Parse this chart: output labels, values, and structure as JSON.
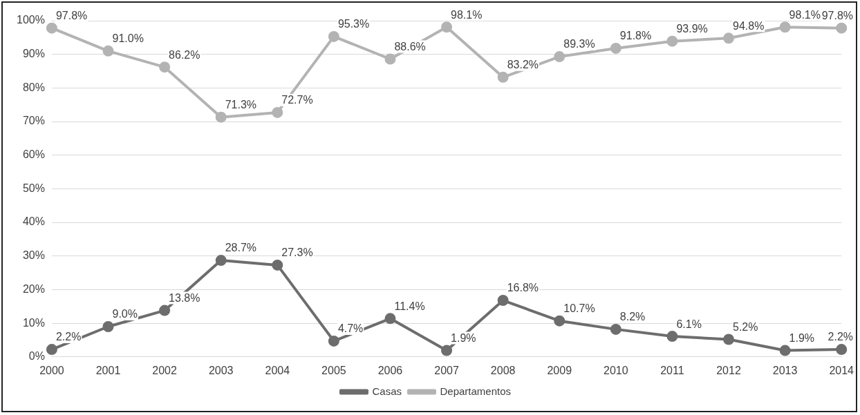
{
  "chart_data": {
    "type": "line",
    "categories": [
      "2000",
      "2001",
      "2002",
      "2003",
      "2004",
      "2005",
      "2006",
      "2007",
      "2008",
      "2009",
      "2010",
      "2011",
      "2012",
      "2013",
      "2014"
    ],
    "series": [
      {
        "name": "Casas",
        "color": "#6d6d6d",
        "values": [
          2.2,
          9.0,
          13.8,
          28.7,
          27.3,
          4.7,
          11.4,
          1.9,
          16.8,
          10.7,
          8.2,
          6.1,
          5.2,
          1.9,
          2.2
        ],
        "value_labels": [
          "2.2%",
          "9.0%",
          "13.8%",
          "28.7%",
          "27.3%",
          "4.7%",
          "11.4%",
          "1.9%",
          "16.8%",
          "10.7%",
          "8.2%",
          "6.1%",
          "5.2%",
          "1.9%",
          "2.2%"
        ]
      },
      {
        "name": "Departamentos",
        "color": "#b3b3b3",
        "values": [
          97.8,
          91.0,
          86.2,
          71.3,
          72.7,
          95.3,
          88.6,
          98.1,
          83.2,
          89.3,
          91.8,
          93.9,
          94.8,
          98.1,
          97.8
        ],
        "value_labels": [
          "97.8%",
          "91.0%",
          "86.2%",
          "71.3%",
          "72.7%",
          "95.3%",
          "88.6%",
          "98.1%",
          "83.2%",
          "89.3%",
          "91.8%",
          "93.9%",
          "94.8%",
          "98.1%",
          "97.8%"
        ]
      }
    ],
    "ylim": [
      0,
      100
    ],
    "yticks": [
      {
        "value": 0,
        "label": "0%"
      },
      {
        "value": 10,
        "label": "10%"
      },
      {
        "value": 20,
        "label": "20%"
      },
      {
        "value": 30,
        "label": "30%"
      },
      {
        "value": 40,
        "label": "40%"
      },
      {
        "value": 50,
        "label": "50%"
      },
      {
        "value": 60,
        "label": "60%"
      },
      {
        "value": 70,
        "label": "70%"
      },
      {
        "value": 80,
        "label": "80%"
      },
      {
        "value": 90,
        "label": "90%"
      },
      {
        "value": 100,
        "label": "100%"
      }
    ],
    "grid": "y",
    "legend": "bottom",
    "marker": "circle",
    "line_style": "solid"
  }
}
